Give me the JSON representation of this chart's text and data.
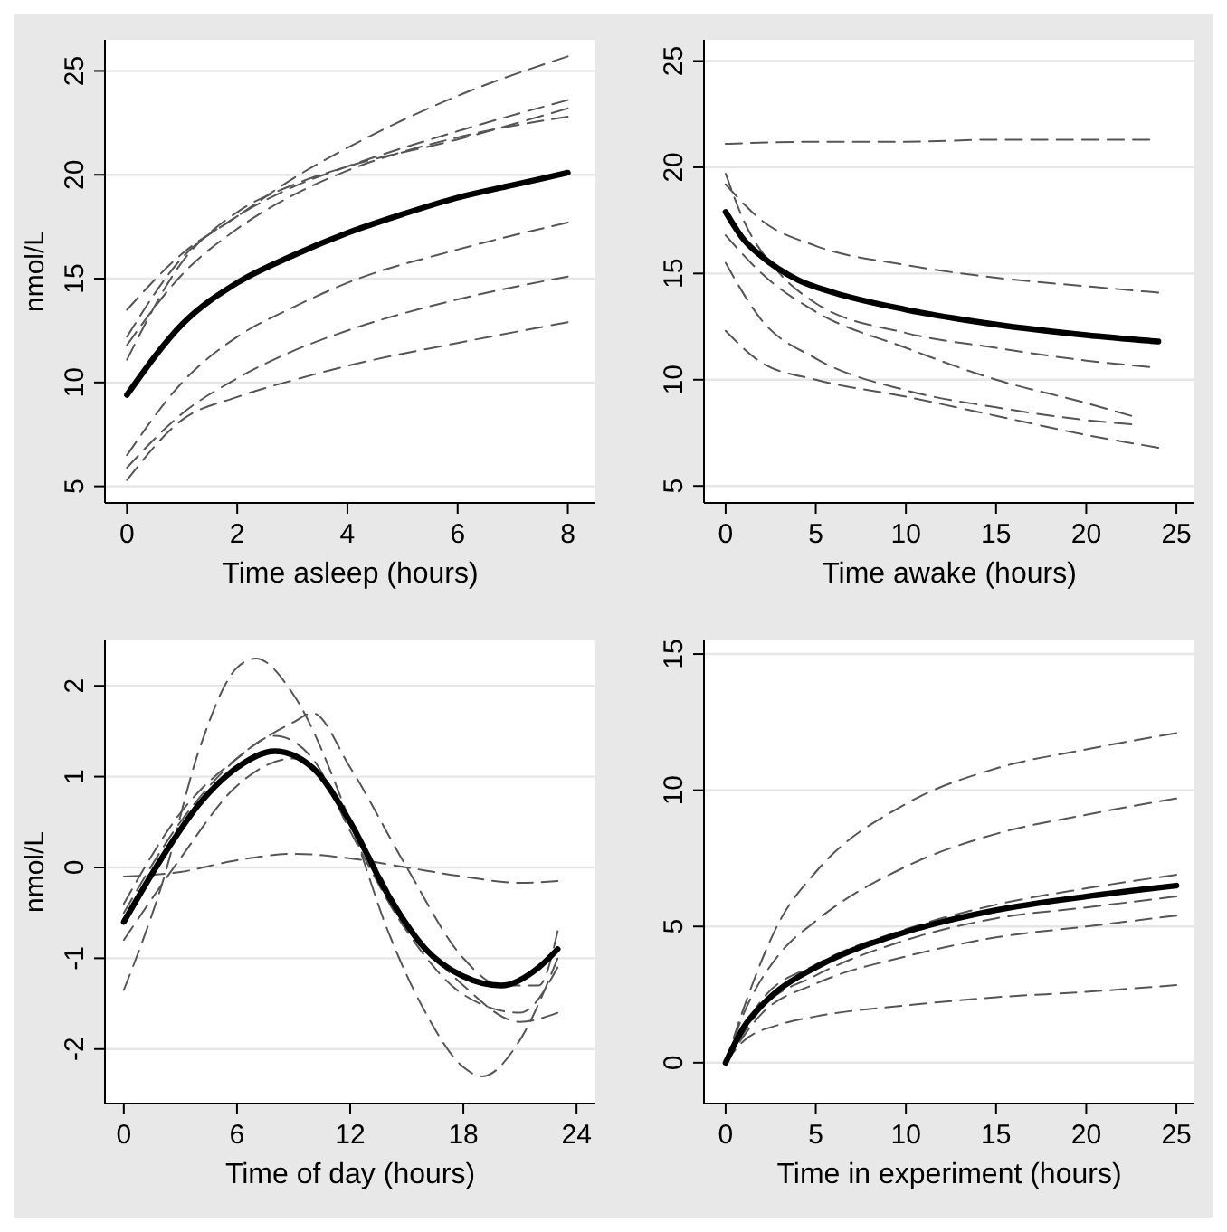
{
  "chart_data": [
    {
      "type": "line",
      "xlabel": "Time asleep (hours)",
      "ylabel": "nmol/L",
      "xlim": [
        -0.4,
        8.5
      ],
      "ylim": [
        4.2,
        26.5
      ],
      "xticks": [
        0,
        2,
        4,
        6,
        8
      ],
      "yticks": [
        5,
        10,
        15,
        20,
        25
      ],
      "grid": "y",
      "series": [
        {
          "color": "#555555",
          "line_style": "dashed",
          "x": [
            0,
            1,
            2,
            3,
            4,
            6,
            8
          ],
          "values": [
            13.5,
            16.2,
            18.0,
            19.8,
            21.3,
            23.8,
            25.7
          ]
        },
        {
          "color": "#555555",
          "line_style": "dashed",
          "x": [
            0,
            1,
            2,
            3,
            4,
            6,
            8
          ],
          "values": [
            12.2,
            16,
            18,
            19.4,
            20.4,
            22.1,
            23.6
          ]
        },
        {
          "color": "#555555",
          "line_style": "dashed",
          "x": [
            0,
            1,
            2,
            3,
            4,
            6,
            8
          ],
          "values": [
            11.1,
            15.8,
            18.2,
            19.5,
            20.4,
            21.7,
            23.2
          ]
        },
        {
          "color": "#555555",
          "line_style": "dashed",
          "x": [
            0,
            1,
            2,
            3,
            4,
            6,
            8
          ],
          "values": [
            11.8,
            15.2,
            17.4,
            19,
            20.2,
            21.8,
            22.8
          ]
        },
        {
          "color": "#555555",
          "line_style": "dashed",
          "x": [
            0,
            1,
            2,
            3,
            4,
            6,
            8
          ],
          "values": [
            6.5,
            10,
            12.2,
            13.6,
            14.8,
            16.4,
            17.7
          ]
        },
        {
          "color": "#555555",
          "line_style": "dashed",
          "x": [
            0,
            1,
            2,
            3,
            4,
            6,
            8
          ],
          "values": [
            5.9,
            8.5,
            10.2,
            11.5,
            12.5,
            14,
            15.1
          ]
        },
        {
          "color": "#555555",
          "line_style": "dashed",
          "x": [
            0,
            1,
            2,
            3,
            4,
            6,
            8
          ],
          "values": [
            5.3,
            8.2,
            9.3,
            10.1,
            10.8,
            11.9,
            12.9
          ]
        },
        {
          "color": "#000000",
          "line_style": "solid",
          "x": [
            0,
            1,
            2,
            3,
            4,
            5,
            6,
            7,
            8
          ],
          "values": [
            9.4,
            12.8,
            14.8,
            16.1,
            17.2,
            18.1,
            18.9,
            19.5,
            20.1
          ]
        }
      ]
    },
    {
      "type": "line",
      "xlabel": "Time awake (hours)",
      "xlim": [
        -1.2,
        26
      ],
      "ylim": [
        4.2,
        26
      ],
      "xticks": [
        0,
        5,
        10,
        15,
        20,
        25
      ],
      "yticks": [
        5,
        10,
        15,
        20,
        25
      ],
      "grid": "y",
      "series": [
        {
          "color": "#555555",
          "line_style": "dashed",
          "x": [
            0,
            5,
            10,
            15,
            23.5
          ],
          "values": [
            21.1,
            21.2,
            21.2,
            21.3,
            21.3
          ]
        },
        {
          "color": "#555555",
          "line_style": "dashed",
          "x": [
            0,
            2,
            5,
            10,
            15,
            20,
            24
          ],
          "values": [
            19.2,
            17.5,
            16.3,
            15.4,
            14.8,
            14.4,
            14.1
          ]
        },
        {
          "color": "#555555",
          "line_style": "dashed",
          "x": [
            0,
            1,
            3,
            5,
            10,
            15,
            20,
            23.5
          ],
          "values": [
            19.7,
            17.5,
            15,
            13.6,
            12.2,
            11.5,
            10.9,
            10.6
          ]
        },
        {
          "color": "#555555",
          "line_style": "dashed",
          "x": [
            0,
            2,
            5,
            10,
            15,
            20,
            22.5
          ],
          "values": [
            16.8,
            15,
            13.2,
            11.5,
            10,
            8.9,
            8.3
          ]
        },
        {
          "color": "#555555",
          "line_style": "dashed",
          "x": [
            0,
            2,
            5,
            10,
            15,
            20,
            22.5
          ],
          "values": [
            15.5,
            12.8,
            11,
            9.5,
            8.7,
            8.1,
            7.9
          ]
        },
        {
          "color": "#555555",
          "line_style": "dashed",
          "x": [
            0,
            2,
            5,
            10,
            15,
            20,
            24
          ],
          "values": [
            12.3,
            10.8,
            10,
            9.2,
            8.3,
            7.4,
            6.8
          ]
        },
        {
          "color": "#000000",
          "line_style": "solid",
          "x": [
            0,
            1,
            2,
            4,
            6,
            10,
            15,
            20,
            24
          ],
          "values": [
            17.9,
            16.6,
            15.8,
            14.7,
            14.1,
            13.3,
            12.6,
            12.1,
            11.8
          ]
        }
      ]
    },
    {
      "type": "line",
      "xlabel": "Time of day (hours)",
      "ylabel": "nmol/L",
      "xlim": [
        -1,
        25
      ],
      "ylim": [
        -2.6,
        2.5
      ],
      "xticks": [
        0,
        6,
        12,
        18,
        24
      ],
      "yticks": [
        -2,
        -1,
        0,
        1,
        2
      ],
      "grid": "y",
      "series": [
        {
          "color": "#555555",
          "line_style": "dashed",
          "x": [
            0,
            2,
            4,
            6,
            7,
            9,
            12,
            14,
            16,
            18,
            19,
            21,
            23
          ],
          "values": [
            -1.35,
            -0.2,
            1.3,
            2.2,
            2.3,
            1.9,
            0.5,
            -0.7,
            -1.6,
            -2.2,
            -2.3,
            -1.9,
            -1.0
          ]
        },
        {
          "color": "#555555",
          "line_style": "dashed",
          "x": [
            0,
            3,
            6,
            9,
            12,
            15,
            18,
            21,
            23
          ],
          "values": [
            -0.1,
            -0.05,
            0.08,
            0.15,
            0.1,
            0.0,
            -0.1,
            -0.17,
            -0.15
          ]
        },
        {
          "color": "#555555",
          "line_style": "dashed",
          "x": [
            0,
            3,
            6,
            9,
            10,
            12,
            15,
            18,
            20,
            22,
            23
          ],
          "values": [
            -0.5,
            0.5,
            1.2,
            1.6,
            1.7,
            1.1,
            0,
            -1.0,
            -1.3,
            -1.3,
            -0.7
          ]
        },
        {
          "color": "#555555",
          "line_style": "dashed",
          "x": [
            0,
            3,
            6,
            9,
            12,
            15,
            18,
            21,
            23
          ],
          "values": [
            -0.8,
            0.1,
            0.9,
            1.2,
            0.5,
            -0.6,
            -1.3,
            -1.7,
            -1.6
          ]
        },
        {
          "color": "#555555",
          "line_style": "dashed",
          "x": [
            0,
            3,
            6,
            8,
            10,
            12,
            15,
            18,
            21,
            23
          ],
          "values": [
            -0.4,
            0.6,
            1.2,
            1.45,
            1.2,
            0.4,
            -0.7,
            -1.4,
            -1.6,
            -1.1
          ]
        },
        {
          "color": "#000000",
          "line_style": "solid",
          "x": [
            0,
            2,
            4,
            6,
            8,
            10,
            12,
            14,
            16,
            18,
            20,
            22,
            23
          ],
          "values": [
            -0.6,
            0.1,
            0.7,
            1.1,
            1.28,
            1.1,
            0.5,
            -0.3,
            -0.9,
            -1.2,
            -1.3,
            -1.1,
            -0.9
          ]
        }
      ]
    },
    {
      "type": "line",
      "xlabel": "Time in experiment (hours)",
      "xlim": [
        -1.2,
        26
      ],
      "ylim": [
        -1.5,
        15.5
      ],
      "xticks": [
        0,
        5,
        10,
        15,
        20,
        25
      ],
      "yticks": [
        0,
        5,
        10,
        15
      ],
      "grid": "y",
      "series": [
        {
          "color": "#555555",
          "line_style": "dashed",
          "x": [
            0,
            1,
            3,
            5,
            10,
            15,
            20,
            25
          ],
          "values": [
            0,
            2,
            5.2,
            7,
            9.5,
            10.8,
            11.5,
            12.1
          ]
        },
        {
          "color": "#555555",
          "line_style": "dashed",
          "x": [
            0,
            1,
            3,
            5,
            10,
            15,
            20,
            25
          ],
          "values": [
            0,
            1.8,
            4,
            5.2,
            7.2,
            8.4,
            9.1,
            9.7
          ]
        },
        {
          "color": "#555555",
          "line_style": "dashed",
          "x": [
            0,
            2,
            5,
            10,
            15,
            20,
            25
          ],
          "values": [
            0,
            2.3,
            3.6,
            4.9,
            5.8,
            6.4,
            6.9
          ]
        },
        {
          "color": "#555555",
          "line_style": "dashed",
          "x": [
            0,
            2,
            5,
            10,
            15,
            20,
            25
          ],
          "values": [
            0,
            2,
            3.2,
            4.5,
            5.3,
            5.7,
            6.1
          ]
        },
        {
          "color": "#555555",
          "line_style": "dashed",
          "x": [
            0,
            2,
            5,
            10,
            15,
            20,
            25
          ],
          "values": [
            0,
            1.8,
            2.9,
            3.9,
            4.6,
            5,
            5.4
          ]
        },
        {
          "color": "#555555",
          "line_style": "dashed",
          "x": [
            0,
            1,
            3,
            5,
            10,
            15,
            20,
            25
          ],
          "values": [
            0,
            0.8,
            1.4,
            1.7,
            2.1,
            2.4,
            2.6,
            2.85
          ]
        },
        {
          "color": "#000000",
          "line_style": "solid",
          "x": [
            0,
            1,
            2,
            3,
            5,
            10,
            15,
            20,
            25
          ],
          "values": [
            0,
            1.3,
            2.1,
            2.7,
            3.5,
            4.8,
            5.6,
            6.1,
            6.5
          ]
        }
      ]
    }
  ]
}
